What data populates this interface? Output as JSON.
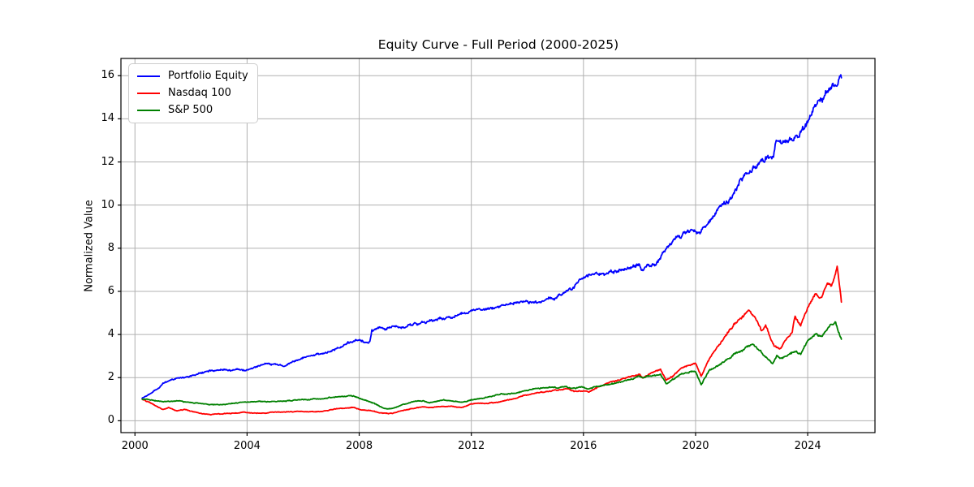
{
  "figure": {
    "background": "#ffffff",
    "spine_color": "#000000"
  },
  "chart_data": {
    "type": "line",
    "title": "Equity Curve - Full Period (2000-2025)",
    "xlabel": "",
    "ylabel": "Normalized Value",
    "xlim": [
      1999.5,
      2026.4
    ],
    "ylim": [
      -0.55,
      16.8
    ],
    "xticks": [
      2000,
      2004,
      2008,
      2012,
      2016,
      2020,
      2024
    ],
    "yticks": [
      0,
      2,
      4,
      6,
      8,
      10,
      12,
      14,
      16
    ],
    "grid": true,
    "grid_color": "#b0b0b0",
    "legend_position": "upper-left",
    "series": [
      {
        "name": "Portfolio Equity",
        "color": "#0000ff",
        "x": [
          2000.26,
          2000.6,
          2001.0,
          2001.5,
          2002.0,
          2002.5,
          2003.0,
          2003.6,
          2004.0,
          2004.5,
          2005.0,
          2005.3,
          2005.6,
          2006.0,
          2006.5,
          2007.0,
          2007.3,
          2007.6,
          2008.0,
          2008.3,
          2008.38,
          2008.45,
          2009.0,
          2009.5,
          2010.0,
          2010.5,
          2011.0,
          2011.5,
          2012.0,
          2012.5,
          2013.0,
          2013.5,
          2014.0,
          2014.5,
          2015.0,
          2015.5,
          2016.0,
          2016.3,
          2016.7,
          2017.0,
          2017.5,
          2018.0,
          2018.12,
          2018.3,
          2018.6,
          2019.0,
          2019.4,
          2019.8,
          2020.1,
          2020.35,
          2020.6,
          2021.0,
          2021.3,
          2021.6,
          2022.0,
          2022.3,
          2022.6,
          2022.78,
          2022.88,
          2023.0,
          2023.3,
          2023.6,
          2024.0,
          2024.3,
          2024.6,
          2024.8,
          2025.0,
          2025.2
        ],
        "y": [
          1.05,
          1.3,
          1.7,
          1.95,
          2.1,
          2.25,
          2.3,
          2.35,
          2.4,
          2.58,
          2.64,
          2.56,
          2.76,
          3.0,
          3.15,
          3.27,
          3.45,
          3.7,
          3.8,
          3.65,
          3.68,
          4.2,
          4.25,
          4.3,
          4.5,
          4.6,
          4.7,
          4.8,
          5.05,
          5.1,
          5.2,
          5.35,
          5.5,
          5.55,
          5.65,
          6.1,
          6.5,
          6.7,
          6.75,
          6.9,
          7.0,
          7.1,
          6.8,
          7.15,
          7.25,
          7.9,
          8.5,
          8.7,
          8.6,
          8.85,
          9.3,
          10.0,
          10.4,
          11.0,
          11.5,
          12.1,
          12.4,
          12.45,
          13.05,
          13.15,
          13.2,
          13.35,
          13.8,
          14.5,
          14.9,
          15.1,
          15.45,
          15.9
        ]
      },
      {
        "name": "Nasdaq 100",
        "color": "#ff0000",
        "x": [
          2000.26,
          2000.5,
          2000.75,
          2001.0,
          2001.2,
          2001.5,
          2001.8,
          2002.0,
          2002.4,
          2002.7,
          2003.0,
          2003.5,
          2004.0,
          2004.5,
          2005.0,
          2005.5,
          2006.0,
          2006.5,
          2007.0,
          2007.5,
          2007.8,
          2008.0,
          2008.4,
          2008.7,
          2009.0,
          2009.2,
          2009.6,
          2010.0,
          2010.3,
          2010.5,
          2011.0,
          2011.3,
          2011.7,
          2012.0,
          2012.5,
          2013.0,
          2013.5,
          2014.0,
          2014.5,
          2015.0,
          2015.4,
          2015.7,
          2016.0,
          2016.2,
          2016.5,
          2017.0,
          2017.5,
          2018.0,
          2018.12,
          2018.5,
          2018.75,
          2018.95,
          2019.2,
          2019.5,
          2020.0,
          2020.2,
          2020.5,
          2021.0,
          2021.5,
          2021.75,
          2021.9,
          2022.0,
          2022.2,
          2022.35,
          2022.5,
          2022.8,
          2023.0,
          2023.2,
          2023.45,
          2023.55,
          2023.75,
          2024.0,
          2024.25,
          2024.5,
          2024.7,
          2024.85,
          2025.05,
          2025.2
        ],
        "y": [
          1.0,
          0.9,
          0.7,
          0.52,
          0.6,
          0.45,
          0.5,
          0.42,
          0.3,
          0.27,
          0.3,
          0.36,
          0.38,
          0.37,
          0.4,
          0.42,
          0.44,
          0.44,
          0.5,
          0.57,
          0.6,
          0.52,
          0.47,
          0.38,
          0.33,
          0.32,
          0.5,
          0.57,
          0.62,
          0.58,
          0.65,
          0.68,
          0.62,
          0.78,
          0.82,
          0.9,
          1.05,
          1.19,
          1.3,
          1.4,
          1.45,
          1.35,
          1.42,
          1.37,
          1.55,
          1.76,
          1.94,
          2.16,
          1.97,
          2.23,
          2.32,
          1.82,
          2.05,
          2.39,
          2.6,
          2.08,
          2.95,
          3.85,
          4.65,
          5.0,
          5.2,
          5.0,
          4.7,
          4.2,
          4.5,
          3.5,
          3.35,
          3.8,
          4.2,
          4.9,
          4.5,
          5.3,
          5.9,
          5.6,
          6.3,
          6.1,
          7.0,
          5.5
        ]
      },
      {
        "name": "S&P 500",
        "color": "#008000",
        "x": [
          2000.26,
          2000.6,
          2001.0,
          2001.5,
          2002.0,
          2002.5,
          2002.8,
          2003.2,
          2003.6,
          2004.0,
          2004.5,
          2005.0,
          2005.5,
          2006.0,
          2006.5,
          2007.0,
          2007.5,
          2007.8,
          2008.0,
          2008.3,
          2008.6,
          2008.9,
          2009.1,
          2009.3,
          2009.6,
          2010.0,
          2010.3,
          2010.5,
          2011.0,
          2011.5,
          2011.7,
          2012.0,
          2012.5,
          2013.0,
          2013.5,
          2014.0,
          2014.5,
          2015.0,
          2015.4,
          2015.7,
          2016.0,
          2016.2,
          2016.5,
          2017.0,
          2017.5,
          2018.0,
          2018.12,
          2018.5,
          2018.75,
          2018.95,
          2019.2,
          2019.5,
          2020.0,
          2020.2,
          2020.5,
          2021.0,
          2021.5,
          2022.0,
          2022.3,
          2022.5,
          2022.75,
          2022.9,
          2023.05,
          2023.4,
          2023.6,
          2023.75,
          2024.0,
          2024.3,
          2024.5,
          2024.8,
          2025.0,
          2025.2
        ],
        "y": [
          1.0,
          0.92,
          0.85,
          0.9,
          0.82,
          0.75,
          0.72,
          0.72,
          0.8,
          0.85,
          0.88,
          0.9,
          0.92,
          0.95,
          1.0,
          1.05,
          1.1,
          1.15,
          1.05,
          0.95,
          0.77,
          0.6,
          0.58,
          0.65,
          0.8,
          0.9,
          0.95,
          0.85,
          1.0,
          0.92,
          0.88,
          1.0,
          1.05,
          1.19,
          1.3,
          1.41,
          1.48,
          1.56,
          1.58,
          1.47,
          1.55,
          1.48,
          1.62,
          1.76,
          1.88,
          2.08,
          1.98,
          2.1,
          2.2,
          1.76,
          1.95,
          2.23,
          2.35,
          1.7,
          2.4,
          2.76,
          3.2,
          3.58,
          3.33,
          2.95,
          2.65,
          3.0,
          2.84,
          3.2,
          3.25,
          3.14,
          3.7,
          3.97,
          3.83,
          4.34,
          4.53,
          3.78
        ]
      }
    ]
  }
}
